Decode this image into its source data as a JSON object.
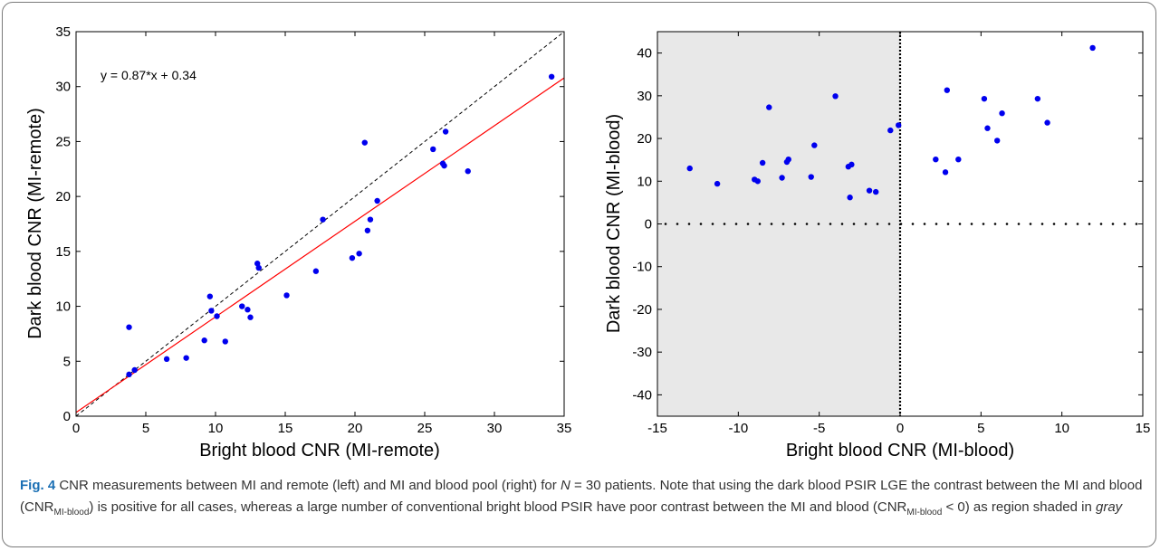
{
  "caption": {
    "label": "Fig. 4",
    "text_1": " CNR measurements between MI and remote (left) and MI and blood pool (right) for ",
    "n_var": "N",
    "text_2": " = 30 patients. Note that using the dark blood PSIR LGE the contrast between the MI and blood (CNR",
    "sub_1": "MI-blood",
    "text_3": ") is positive for all cases, whereas a large number of conventional bright blood PSIR have poor contrast between the MI and blood (CNR",
    "sub_2": "MI-blood",
    "text_4": " < 0) as region shaded in ",
    "italic_word": "gray"
  },
  "chart_data": [
    {
      "type": "scatter",
      "xlabel": "Bright blood CNR (MI-remote)",
      "ylabel": "Dark blood CNR (MI-remote)",
      "xlim": [
        0,
        35
      ],
      "ylim": [
        0,
        35
      ],
      "xticks": [
        0,
        5,
        10,
        15,
        20,
        25,
        30,
        35
      ],
      "yticks": [
        0,
        5,
        10,
        15,
        20,
        25,
        30,
        35
      ],
      "annotation": "y = 0.87*x + 0.34",
      "marker_color": "#0000ee",
      "fit_line": {
        "slope": 0.87,
        "intercept": 0.34,
        "color": "#ff0000"
      },
      "identity_line": {
        "color": "#000000",
        "style": "dashed"
      },
      "points": [
        [
          3.8,
          8.1
        ],
        [
          3.8,
          3.8
        ],
        [
          4.2,
          4.2
        ],
        [
          6.5,
          5.2
        ],
        [
          7.9,
          5.3
        ],
        [
          9.2,
          6.9
        ],
        [
          9.6,
          10.9
        ],
        [
          9.7,
          9.6
        ],
        [
          10.1,
          9.1
        ],
        [
          10.7,
          6.8
        ],
        [
          11.9,
          10.0
        ],
        [
          12.3,
          9.7
        ],
        [
          12.5,
          9.0
        ],
        [
          13.0,
          13.9
        ],
        [
          13.1,
          13.5
        ],
        [
          15.1,
          11.0
        ],
        [
          17.2,
          13.2
        ],
        [
          17.7,
          17.9
        ],
        [
          19.8,
          14.4
        ],
        [
          20.3,
          14.8
        ],
        [
          20.7,
          24.9
        ],
        [
          20.9,
          16.9
        ],
        [
          21.1,
          17.9
        ],
        [
          21.6,
          19.6
        ],
        [
          25.6,
          24.3
        ],
        [
          26.3,
          23.0
        ],
        [
          26.4,
          22.8
        ],
        [
          26.5,
          25.9
        ],
        [
          28.1,
          22.3
        ],
        [
          34.1,
          30.9
        ]
      ]
    },
    {
      "type": "scatter",
      "xlabel": "Bright blood CNR (MI-blood)",
      "ylabel": "Dark blood CNR (MI-blood)",
      "xlim": [
        -15,
        15
      ],
      "ylim": [
        -45,
        45
      ],
      "xticks": [
        -15,
        -10,
        -5,
        0,
        5,
        10,
        15
      ],
      "yticks": [
        -40,
        -30,
        -20,
        -10,
        0,
        10,
        20,
        30,
        40
      ],
      "shaded_region": {
        "x": [
          -15,
          0
        ],
        "color": "#e8e8e8"
      },
      "marker_color": "#0000ee",
      "reference_lines": {
        "x": 0,
        "y": 0,
        "style": "dotted",
        "color": "#000000"
      },
      "points": [
        [
          -13.0,
          13.0
        ],
        [
          -11.3,
          9.4
        ],
        [
          -9.0,
          10.4
        ],
        [
          -8.8,
          10.0
        ],
        [
          -8.5,
          14.3
        ],
        [
          -8.1,
          27.3
        ],
        [
          -7.3,
          10.8
        ],
        [
          -7.0,
          14.5
        ],
        [
          -6.9,
          15.1
        ],
        [
          -5.5,
          11.0
        ],
        [
          -5.3,
          18.4
        ],
        [
          -4.0,
          29.9
        ],
        [
          -3.2,
          13.4
        ],
        [
          -3.0,
          13.9
        ],
        [
          -3.1,
          6.2
        ],
        [
          -1.9,
          7.8
        ],
        [
          -1.5,
          7.5
        ],
        [
          -0.6,
          21.9
        ],
        [
          -0.1,
          23.1
        ],
        [
          2.2,
          15.1
        ],
        [
          2.8,
          12.1
        ],
        [
          2.9,
          31.3
        ],
        [
          3.6,
          15.1
        ],
        [
          5.2,
          29.3
        ],
        [
          5.4,
          22.4
        ],
        [
          6.0,
          19.5
        ],
        [
          6.3,
          25.9
        ],
        [
          8.5,
          29.3
        ],
        [
          9.1,
          23.7
        ],
        [
          11.9,
          41.2
        ]
      ]
    }
  ]
}
